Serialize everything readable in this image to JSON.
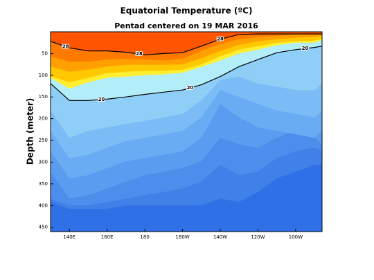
{
  "chart_data": {
    "type": "contour",
    "title": "Equatorial Temperature (ºC)",
    "subtitle": "Pentad centered on 19 MAR 2016",
    "ylabel": "Depth (meter)",
    "x": [
      130,
      140,
      150,
      160,
      170,
      180,
      190,
      200,
      210,
      220,
      230,
      240,
      250,
      260,
      270,
      274
    ],
    "xlim": [
      130,
      274
    ],
    "xticks": [
      {
        "value": 140,
        "label": "140E"
      },
      {
        "value": 160,
        "label": "160E"
      },
      {
        "value": 180,
        "label": "180"
      },
      {
        "value": 200,
        "label": "160W"
      },
      {
        "value": 220,
        "label": "140W"
      },
      {
        "value": 240,
        "label": "120W"
      },
      {
        "value": 260,
        "label": "100W"
      }
    ],
    "ylim": [
      0,
      460
    ],
    "y_inverted": true,
    "yticks": [
      50,
      100,
      150,
      200,
      250,
      300,
      350,
      400,
      450
    ],
    "cold_color": "#3070e6",
    "isotherms": [
      {
        "level": 8,
        "color": "#3f80e9",
        "line": false,
        "depth": [
          392,
          408,
          408,
          408,
          400,
          400,
          400,
          400,
          400,
          384,
          392,
          369,
          337,
          322,
          306,
          306
        ]
      },
      {
        "level": 10,
        "color": "#4b8eec",
        "line": false,
        "depth": [
          384,
          400,
          400,
          392,
          384,
          376,
          369,
          361,
          345,
          306,
          330,
          322,
          291,
          275,
          267,
          275
        ]
      },
      {
        "level": 12,
        "color": "#5a9df0",
        "line": false,
        "depth": [
          322,
          384,
          376,
          361,
          345,
          330,
          322,
          314,
          298,
          244,
          259,
          267,
          244,
          228,
          244,
          259
        ]
      },
      {
        "level": 14,
        "color": "#6aacf3",
        "line": false,
        "depth": [
          275,
          337,
          330,
          314,
          298,
          291,
          283,
          275,
          244,
          166,
          197,
          220,
          228,
          236,
          244,
          228
        ]
      },
      {
        "level": 16,
        "color": "#7bbcf6",
        "line": false,
        "depth": [
          228,
          291,
          283,
          267,
          251,
          244,
          236,
          228,
          197,
          134,
          150,
          166,
          181,
          189,
          197,
          181
        ]
      },
      {
        "level": 18,
        "color": "#8fcff7",
        "line": false,
        "depth": [
          181,
          244,
          228,
          220,
          212,
          205,
          197,
          189,
          158,
          111,
          103,
          119,
          126,
          134,
          134,
          119
        ]
      },
      {
        "level": 20,
        "color": "#b2eefa",
        "line": true,
        "labels_at": [
          157,
          204,
          265
        ],
        "depth": [
          119,
          158,
          158,
          155,
          150,
          144,
          139,
          134,
          122,
          103,
          80,
          64,
          48,
          41,
          36,
          33
        ]
      },
      {
        "level": 24,
        "color": "#ffef30",
        "line": false,
        "depth": [
          106,
          131,
          116,
          106,
          103,
          100,
          98,
          94,
          81,
          66,
          50,
          41,
          31,
          25,
          25,
          19
        ]
      },
      {
        "level": 25,
        "color": "#ffc800",
        "line": false,
        "depth": [
          103,
          116,
          106,
          95,
          92,
          90,
          90,
          87,
          75,
          56,
          41,
          33,
          25,
          22,
          20,
          16
        ]
      },
      {
        "level": 26,
        "color": "#ffa000",
        "line": false,
        "depth": [
          80,
          92,
          87,
          80,
          76,
          76,
          76,
          75,
          61,
          44,
          30,
          22,
          17,
          14,
          12,
          9
        ]
      },
      {
        "level": 27,
        "color": "#ff7a00",
        "line": false,
        "depth": [
          56,
          69,
          69,
          64,
          62,
          64,
          66,
          62,
          44,
          28,
          17,
          12,
          9,
          6,
          5,
          5
        ]
      },
      {
        "level": 28,
        "color": "#ff5500",
        "line": true,
        "labels_at": [
          138,
          177,
          220
        ],
        "depth": [
          22,
          37,
          44,
          44,
          47,
          53,
          50,
          48,
          33,
          17,
          6,
          5,
          5,
          5,
          5,
          5
        ]
      }
    ]
  }
}
